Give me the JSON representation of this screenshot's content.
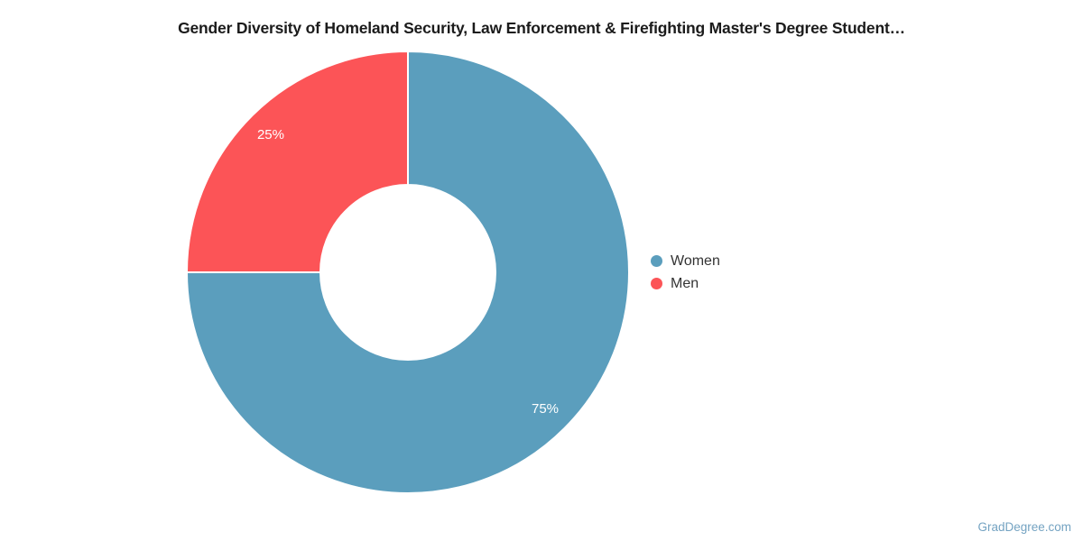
{
  "chart_data": {
    "type": "pie",
    "donut": true,
    "title": "Gender Diversity of Homeland Security, Law Enforcement & Firefighting Master's Degree Student…",
    "categories": [
      "Women",
      "Men"
    ],
    "values": [
      75,
      25
    ],
    "labels": [
      "75%",
      "25%"
    ],
    "colors": [
      "#5B9EBD",
      "#FC5457"
    ],
    "legend_position": "right",
    "start_angle_deg": 0,
    "direction": "clockwise"
  },
  "legend": {
    "items": [
      {
        "label": "Women",
        "marker": "circle-icon"
      },
      {
        "label": "Men",
        "marker": "circle-icon"
      }
    ]
  },
  "footer": {
    "watermark": "GradDegree.com"
  }
}
